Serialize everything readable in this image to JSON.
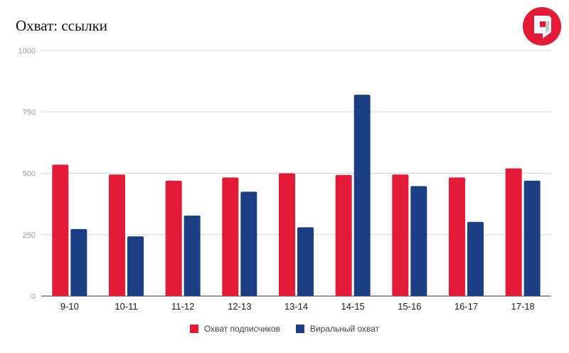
{
  "chart_data": {
    "type": "bar",
    "title": "Охват: ссылки",
    "categories": [
      "9-10",
      "10-11",
      "11-12",
      "12-13",
      "13-14",
      "14-15",
      "15-16",
      "16-17",
      "17-18"
    ],
    "series": [
      {
        "name": "Охват подписчиков",
        "color": "#e31b36",
        "values": [
          535,
          495,
          470,
          483,
          500,
          493,
          495,
          483,
          520
        ]
      },
      {
        "name": "Виральный охват",
        "color": "#1b3f82",
        "values": [
          273,
          243,
          328,
          425,
          280,
          820,
          448,
          302,
          470
        ]
      }
    ],
    "ylim": [
      0,
      1000
    ],
    "yticks": [
      0,
      250,
      500,
      750,
      1000
    ],
    "grid": true,
    "legend_position": "bottom",
    "logo_icon": "red-circle-logo-icon"
  }
}
